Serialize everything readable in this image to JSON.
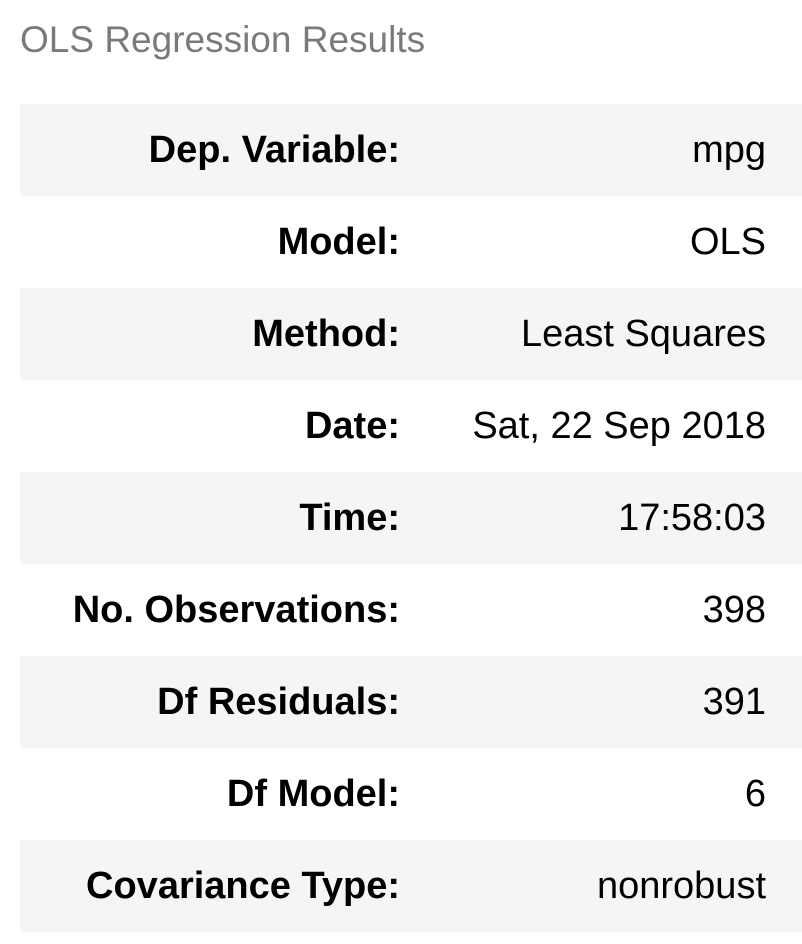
{
  "caption": "OLS Regression Results",
  "rows": [
    {
      "label": "Dep. Variable:",
      "value": "mpg"
    },
    {
      "label": "Model:",
      "value": "OLS"
    },
    {
      "label": "Method:",
      "value": "Least Squares"
    },
    {
      "label": "Date:",
      "value": "Sat, 22 Sep 2018"
    },
    {
      "label": "Time:",
      "value": "17:58:03"
    },
    {
      "label": "No. Observations:",
      "value": "398"
    },
    {
      "label": "Df Residuals:",
      "value": "391"
    },
    {
      "label": "Df Model:",
      "value": "6"
    },
    {
      "label": "Covariance Type:",
      "value": "nonrobust"
    }
  ],
  "colors": {
    "caption_text": "#7a7a7a",
    "stripe": "#f5f5f5",
    "text": "#000000"
  }
}
